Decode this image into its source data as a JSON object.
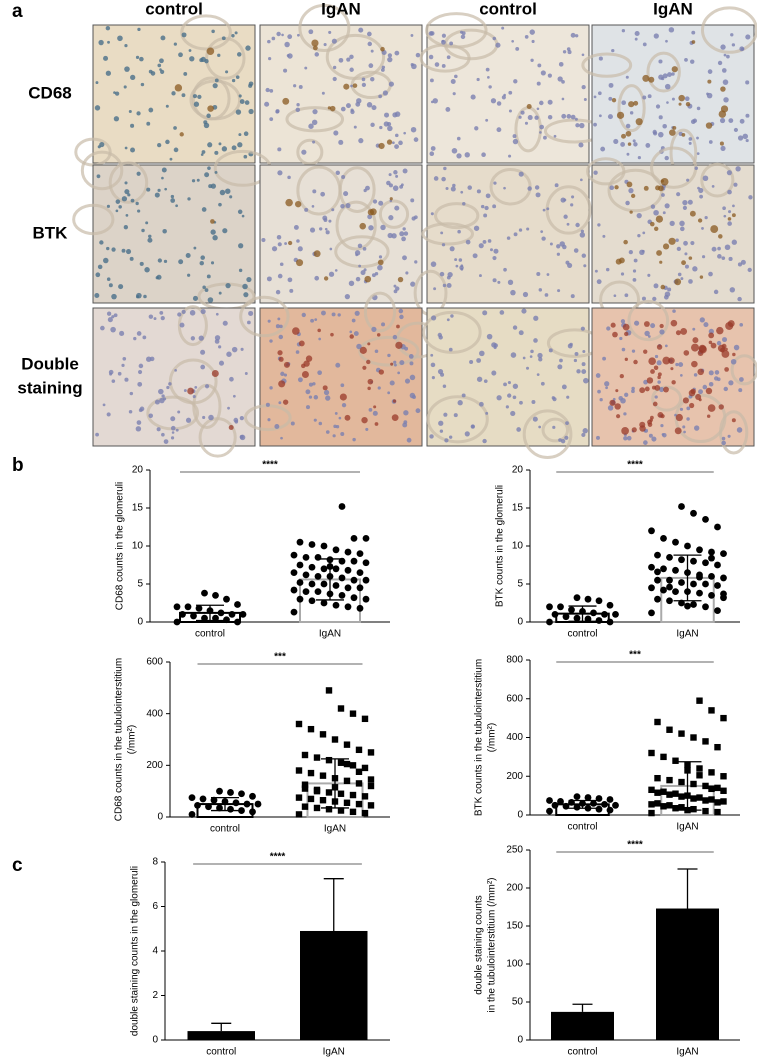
{
  "figure": {
    "panel_labels": [
      "a",
      "b",
      "c"
    ],
    "column_labels": [
      "control",
      "IgAN",
      "control",
      "IgAN"
    ],
    "row_labels": [
      "CD68",
      "BTK",
      [
        "Double",
        "staining"
      ]
    ]
  },
  "chart_data": [
    {
      "type": "dotplot",
      "ylabel": [
        "CD68 counts in the glomeruli"
      ],
      "categories": [
        "control",
        "IgAN"
      ],
      "values": [
        1.2,
        5.6
      ],
      "errors": [
        1.0,
        2.7
      ],
      "points": [
        [
          0,
          0,
          0.3,
          0.5,
          0.5,
          0.8,
          1,
          1,
          1,
          1.2,
          1.5,
          1.8,
          2,
          2,
          2.3,
          3,
          3.5,
          3.8
        ],
        [
          1.3,
          1.8,
          2,
          2.2,
          2.5,
          2.8,
          3,
          3,
          3.2,
          3.5,
          3.7,
          4,
          4,
          4.2,
          4.5,
          4.5,
          4.8,
          5,
          5,
          5.2,
          5.5,
          5.5,
          5.8,
          6,
          6,
          6.2,
          6.5,
          6.5,
          6.8,
          7,
          7,
          7.2,
          7.5,
          7.8,
          8,
          8,
          8.2,
          8.5,
          8.5,
          8.8,
          9,
          9.2,
          9.5,
          10,
          10.2,
          10.5,
          11,
          11,
          15.2,
          7.3
        ]
      ],
      "markers": [
        "circle",
        "circle"
      ],
      "bar_edges": [
        "#000000",
        "#aaaaaa"
      ],
      "ylim": [
        0,
        20
      ],
      "yticks": [
        0,
        5,
        10,
        15,
        20
      ],
      "annotation": "****"
    },
    {
      "type": "dotplot",
      "ylabel": [
        "BTK counts in the glomeruli"
      ],
      "categories": [
        "control",
        "IgAN"
      ],
      "values": [
        1.1,
        5.8
      ],
      "errors": [
        1.0,
        3.0
      ],
      "points": [
        [
          0,
          0,
          0.2,
          0.4,
          0.5,
          0.7,
          1,
          1,
          1,
          1.2,
          1.4,
          1.6,
          2,
          2,
          2.2,
          2.8,
          3,
          3.2
        ],
        [
          1.2,
          1.5,
          2,
          2.3,
          2.5,
          2.8,
          3,
          3.2,
          3.5,
          3.8,
          4,
          4,
          4.2,
          4.5,
          4.8,
          5,
          5,
          5.2,
          5.5,
          5.5,
          5.8,
          6,
          6.2,
          6.5,
          6.8,
          7,
          7.2,
          7.5,
          7.8,
          8,
          8.2,
          8.5,
          8.8,
          9,
          9.2,
          9.5,
          10,
          10.5,
          11,
          12,
          12.5,
          13.5,
          14.3,
          15.2,
          4.6,
          6.6,
          3.7,
          8.4,
          5.9,
          2.1
        ]
      ],
      "markers": [
        "circle",
        "circle"
      ],
      "bar_edges": [
        "#000000",
        "#aaaaaa"
      ],
      "ylim": [
        0,
        20
      ],
      "yticks": [
        0,
        5,
        10,
        15,
        20
      ],
      "annotation": "****"
    },
    {
      "type": "dotplot",
      "ylabel": [
        "CD68 counts in the tubulointerstitium",
        "(/mm²)"
      ],
      "categories": [
        "control",
        "IgAN"
      ],
      "values": [
        50,
        130
      ],
      "errors": [
        25,
        95
      ],
      "points": [
        [
          10,
          20,
          25,
          30,
          35,
          40,
          45,
          50,
          50,
          55,
          60,
          65,
          70,
          75,
          80,
          90,
          95,
          100
        ],
        [
          10,
          15,
          20,
          25,
          30,
          35,
          40,
          45,
          50,
          55,
          60,
          65,
          70,
          75,
          80,
          85,
          90,
          95,
          100,
          110,
          120,
          130,
          140,
          150,
          160,
          170,
          180,
          190,
          200,
          210,
          220,
          230,
          240,
          250,
          260,
          280,
          300,
          320,
          340,
          360,
          380,
          400,
          420,
          490,
          105,
          125,
          145,
          175,
          205,
          115
        ]
      ],
      "markers": [
        "circle",
        "square"
      ],
      "bar_edges": [
        "#000000",
        "#aaaaaa"
      ],
      "ylim": [
        0,
        600
      ],
      "yticks": [
        0,
        200,
        400,
        600
      ],
      "annotation": "***"
    },
    {
      "type": "dotplot",
      "ylabel": [
        "BTK counts in the  tubulointerstitium",
        "(/mm²)"
      ],
      "categories": [
        "control",
        "IgAN"
      ],
      "values": [
        55,
        150
      ],
      "errors": [
        20,
        125
      ],
      "points": [
        [
          20,
          25,
          30,
          35,
          40,
          45,
          50,
          50,
          55,
          60,
          60,
          65,
          70,
          75,
          80,
          85,
          90,
          95
        ],
        [
          10,
          15,
          20,
          30,
          40,
          50,
          60,
          70,
          80,
          90,
          100,
          110,
          120,
          130,
          140,
          150,
          160,
          170,
          180,
          190,
          200,
          220,
          240,
          260,
          280,
          300,
          320,
          350,
          380,
          400,
          420,
          440,
          480,
          500,
          540,
          590,
          25,
          35,
          45,
          55,
          65,
          75,
          85,
          95,
          105,
          115,
          125,
          135,
          205,
          230
        ]
      ],
      "markers": [
        "circle",
        "square"
      ],
      "bar_edges": [
        "#000000",
        "#aaaaaa"
      ],
      "ylim": [
        0,
        800
      ],
      "yticks": [
        0,
        200,
        400,
        600,
        800
      ],
      "annotation": "***"
    },
    {
      "type": "bar",
      "ylabel": [
        "double staining counts in the glomeruli"
      ],
      "categories": [
        "control",
        "IgAN"
      ],
      "values": [
        0.4,
        4.9
      ],
      "errors": [
        0.35,
        2.35
      ],
      "color": "#000000",
      "ylim": [
        0,
        8
      ],
      "yticks": [
        0,
        2,
        4,
        6,
        8
      ],
      "annotation": "****"
    },
    {
      "type": "bar",
      "ylabel": [
        "double staining counts",
        "in the  tubulointerstitium (/mm²)"
      ],
      "categories": [
        "control",
        "IgAN"
      ],
      "values": [
        37,
        173
      ],
      "errors": [
        10,
        52
      ],
      "color": "#000000",
      "ylim": [
        0,
        250
      ],
      "yticks": [
        0,
        50,
        100,
        150,
        200,
        250
      ],
      "annotation": "****"
    }
  ]
}
